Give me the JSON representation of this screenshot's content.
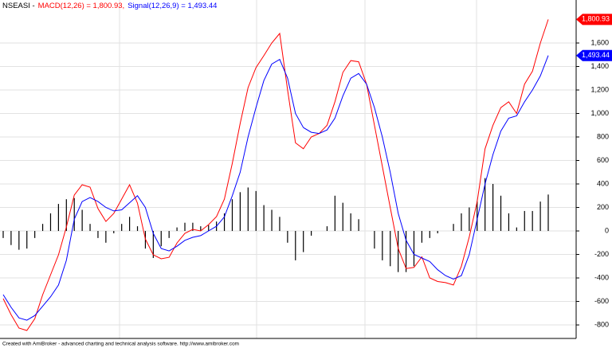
{
  "chart_data": {
    "type": "line",
    "title": "NSEASI -",
    "footer": "Created with AmiBroker - advanced charting and technical analysis software. http://www.amibroker.com",
    "categories": [
      null,
      null,
      null,
      null,
      null,
      null,
      null,
      null,
      null,
      null,
      null,
      null,
      null,
      null,
      null,
      null,
      null,
      null,
      null,
      null,
      null,
      null,
      null,
      null,
      null,
      null,
      null,
      null,
      null,
      null,
      null,
      null,
      null,
      null,
      null,
      null,
      null,
      null,
      null,
      null,
      null,
      null,
      null,
      null,
      null,
      null,
      null,
      null,
      null,
      null,
      null,
      null,
      null,
      null,
      null,
      null,
      null,
      null,
      null,
      null,
      null,
      null,
      null,
      null,
      null,
      null,
      null,
      null,
      null,
      null
    ],
    "series": [
      {
        "name": "MACD(12,26)",
        "legend": "MACD(12,26) = 1,800.93,",
        "last_label": "1,800.93",
        "color": "#ff0000",
        "values": [
          -576,
          -712,
          -827,
          -847,
          -746,
          -542,
          -373,
          -203,
          34,
          305,
          393,
          373,
          190,
          81,
          149,
          271,
          393,
          237,
          -68,
          -203,
          -237,
          -224,
          -102,
          -20,
          14,
          0,
          54,
          122,
          271,
          576,
          915,
          1220,
          1390,
          1492,
          1600,
          1681,
          1200,
          750,
          700,
          800,
          830,
          900,
          1100,
          1350,
          1450,
          1440,
          1250,
          900,
          550,
          200,
          -150,
          -320,
          -310,
          -220,
          -400,
          -430,
          -440,
          -460,
          -300,
          -50,
          250,
          700,
          900,
          1050,
          1100,
          1000,
          1250,
          1360,
          1600,
          1800.93
        ]
      },
      {
        "name": "Signal(12,26,9)",
        "legend": "Signal(12,26,9) = 1,493.44",
        "last_label": "1,493.44",
        "color": "#0000ff",
        "values": [
          -542,
          -650,
          -740,
          -760,
          -720,
          -640,
          -560,
          -460,
          -250,
          100,
          250,
          285,
          250,
          200,
          170,
          180,
          240,
          300,
          200,
          -20,
          -150,
          -170,
          -130,
          -80,
          -54,
          -40,
          0,
          40,
          120,
          300,
          500,
          800,
          1050,
          1280,
          1420,
          1460,
          1300,
          1000,
          880,
          840,
          830,
          860,
          960,
          1150,
          1300,
          1340,
          1250,
          1050,
          800,
          500,
          150,
          -80,
          -200,
          -230,
          -260,
          -330,
          -380,
          -410,
          -380,
          -200,
          100,
          400,
          650,
          850,
          960,
          980,
          1100,
          1200,
          1320,
          1493.44
        ]
      },
      {
        "type": "histogram",
        "color": "#000000",
        "values": [
          -60,
          -120,
          -160,
          -150,
          -60,
          60,
          150,
          230,
          270,
          280,
          180,
          60,
          -60,
          -100,
          -20,
          60,
          120,
          40,
          -150,
          -230,
          -130,
          -60,
          30,
          70,
          70,
          40,
          50,
          80,
          150,
          270,
          330,
          370,
          340,
          220,
          180,
          120,
          -100,
          -250,
          -180,
          -40,
          0,
          40,
          300,
          240,
          150,
          100,
          0,
          -150,
          -250,
          -300,
          -350,
          -350,
          -300,
          -100,
          -60,
          -20,
          0,
          60,
          150,
          200,
          250,
          450,
          400,
          300,
          150,
          30,
          170,
          170,
          250,
          310
        ]
      }
    ],
    "ylim": [
      -915,
      1966
    ],
    "yticks": [
      -800,
      -600,
      -400,
      -200,
      0,
      200,
      400,
      600,
      800,
      {
        "value": 1000,
        "label": "1,000"
      },
      {
        "value": 1200,
        "label": "1,200"
      },
      {
        "value": 1400,
        "label": "1,400"
      },
      {
        "value": 1600,
        "label": "1,600"
      }
    ],
    "grid": true
  }
}
